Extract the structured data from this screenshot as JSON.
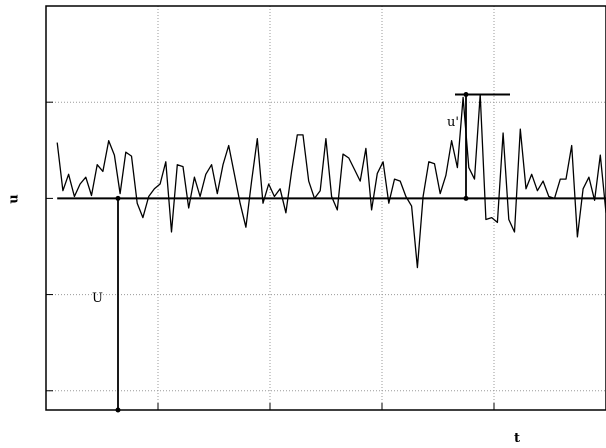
{
  "chart_data": {
    "type": "line",
    "xlabel": "t",
    "ylabel": "u",
    "xlim": [
      0,
      5
    ],
    "ylim": [
      -2.2,
      2.0
    ],
    "grid": true,
    "mean_value": 0,
    "annotations": {
      "mean_label": "U",
      "fluctuation_label": "u'"
    },
    "series": [
      {
        "values": [
          0.58,
          0.08,
          0.25,
          0.02,
          0.15,
          0.22,
          0.03,
          0.35,
          0.28,
          0.6,
          0.45,
          0.05,
          0.48,
          0.44,
          -0.05,
          -0.2,
          0.02,
          0.1,
          0.15,
          0.38,
          -0.35,
          0.35,
          0.33,
          -0.1,
          0.22,
          0.02,
          0.25,
          0.35,
          0.05,
          0.35,
          0.55,
          0.25,
          -0.05,
          -0.3,
          0.18,
          0.62,
          -0.05,
          0.15,
          0.02,
          0.1,
          -0.15,
          0.28,
          0.66,
          0.66,
          0.18,
          0.0,
          0.08,
          0.62,
          0.02,
          -0.12,
          0.46,
          0.42,
          0.3,
          0.18,
          0.52,
          -0.12,
          0.26,
          0.38,
          -0.05,
          0.2,
          0.18,
          0.02,
          -0.08,
          -0.72,
          0.02,
          0.38,
          0.36,
          0.05,
          0.24,
          0.6,
          0.32,
          1.05,
          0.32,
          0.2,
          1.08,
          -0.22,
          -0.2,
          -0.25,
          0.68,
          -0.22,
          -0.35,
          0.72,
          0.1,
          0.25,
          0.08,
          0.18,
          0.02,
          0.0,
          0.2,
          0.2,
          0.55,
          -0.4,
          0.1,
          0.22,
          -0.02,
          0.45,
          -0.15
        ]
      }
    ]
  }
}
